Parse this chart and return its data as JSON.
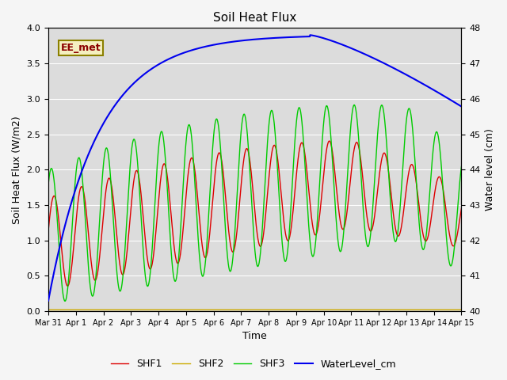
{
  "title": "Soil Heat Flux",
  "ylabel_left": "Soil Heat Flux (W/m2)",
  "ylabel_right": "Water level (cm)",
  "xlabel": "Time",
  "annotation": "EE_met",
  "ylim_left": [
    0.0,
    4.0
  ],
  "ylim_right": [
    40.0,
    48.0
  ],
  "plot_bg_color": "#dcdcdc",
  "fig_bg_color": "#f5f5f5",
  "grid_color": "#ffffff",
  "shf1_color": "#dd0000",
  "shf2_color": "#ccaa00",
  "shf3_color": "#00cc00",
  "water_color": "#0000ee",
  "legend_labels": [
    "SHF1",
    "SHF2",
    "SHF3",
    "WaterLevel_cm"
  ],
  "xtick_labels": [
    "Mar 31",
    "Apr 1",
    "Apr 2",
    "Apr 3",
    "Apr 4",
    "Apr 5",
    "Apr 6",
    "Apr 7",
    "Apr 8",
    "Apr 9",
    "Apr 10",
    "Apr 11",
    "Apr 12",
    "Apr 13",
    "Apr 14",
    "Apr 15"
  ]
}
